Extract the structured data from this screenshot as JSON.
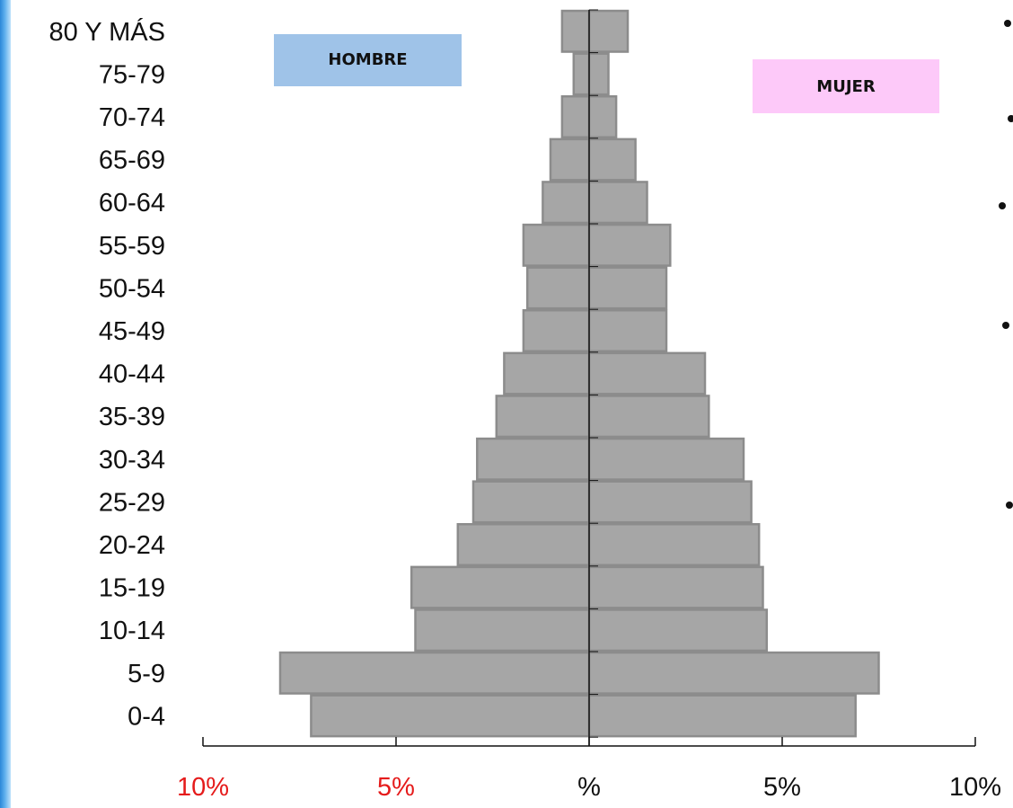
{
  "colors": {
    "bar_fill": "#a6a6a6",
    "bar_stroke": "#8c8c8c",
    "hombre_box": "#9fc3e8",
    "mujer_box": "#fdc9f9",
    "red_tick": "#e51b1b",
    "dark_tick": "#111111"
  },
  "legend": {
    "hombre": "HOMBRE",
    "mujer": "MUJER"
  },
  "chart_data": {
    "type": "bar",
    "orientation": "horizontal-population-pyramid",
    "categories": [
      "80 Y MÁS",
      "75-79",
      "70-74",
      "65-69",
      "60-64",
      "55-59",
      "50-54",
      "45-49",
      "40-44",
      "35-39",
      "30-34",
      "25-29",
      "20-24",
      "15-19",
      "10-14",
      "5-9",
      "0-4"
    ],
    "series": [
      {
        "name": "HOMBRE",
        "values": [
          0.7,
          0.4,
          0.7,
          1.0,
          1.2,
          1.7,
          1.6,
          1.7,
          2.2,
          2.4,
          2.9,
          3.0,
          3.4,
          4.6,
          4.5,
          8.0,
          7.2
        ]
      },
      {
        "name": "MUJER",
        "values": [
          1.0,
          0.5,
          0.7,
          1.2,
          1.5,
          2.1,
          2.0,
          2.0,
          3.0,
          3.1,
          4.0,
          4.2,
          4.4,
          4.5,
          4.6,
          7.5,
          6.9
        ]
      }
    ],
    "xlim": [
      -10,
      10
    ],
    "x_ticks": [
      {
        "value": -10,
        "label": "10%",
        "color": "red"
      },
      {
        "value": -5,
        "label": "5%",
        "color": "red"
      },
      {
        "value": 0,
        "label": "%",
        "color": "dark"
      },
      {
        "value": 5,
        "label": "5%",
        "color": "dark"
      },
      {
        "value": 10,
        "label": "10%",
        "color": "dark"
      }
    ],
    "grid": false
  }
}
